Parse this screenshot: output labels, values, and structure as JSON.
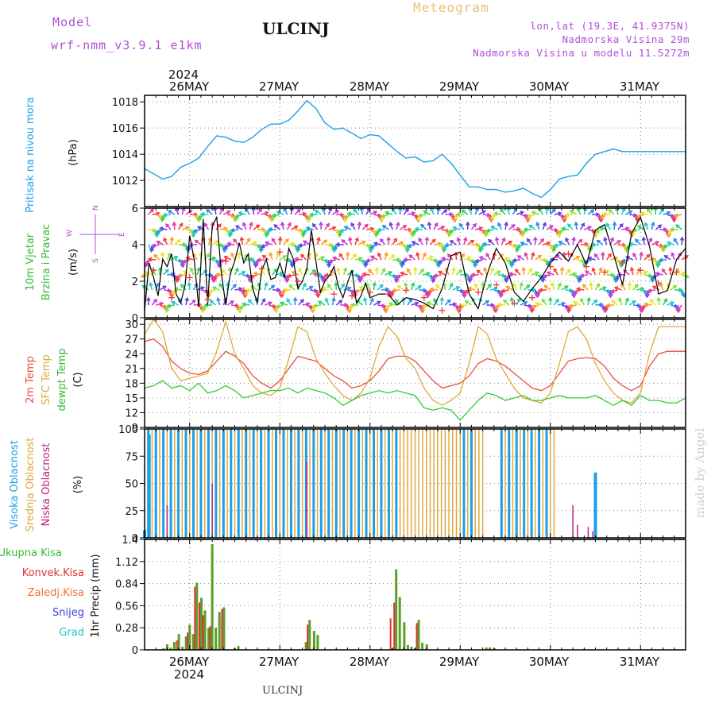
{
  "header": {
    "model_label": "Model",
    "model_name": "wrf-nmm_v3.9.1 e1km",
    "station": "ULCINJ",
    "product": "Meteogram",
    "lonlat": "lon,lat (19.3E, 41.9375N)",
    "elevation": "Nadmorska Visina 29m",
    "model_elevation": "Nadmorska Visina u modelu 11.5272m"
  },
  "footer": {
    "station": "ULCINJ",
    "credit": "made by Angel"
  },
  "time_axis": {
    "year": "2024",
    "days": [
      "26MAY",
      "27MAY",
      "28MAY",
      "29MAY",
      "30MAY",
      "31MAY"
    ]
  },
  "colors": {
    "pressure": "#1da1e6",
    "wind_speed": "#000000",
    "wind_gust": "#e83c3c",
    "t2m": "#e8503c",
    "sfc": "#e0a83c",
    "dewpoint": "#33cc33",
    "cloud_high": "#1a9fe8",
    "cloud_mid": "#e0a83c",
    "cloud_low": "#c02080",
    "precip_total": "#5a9e2a",
    "precip_conv": "#e03030"
  },
  "panels": {
    "pressure": {
      "label": "Pritisak na nivou mora",
      "unit": "(hPa)"
    },
    "wind": {
      "label1": "10m Vjetar",
      "label2": "Brzina i Pravac",
      "unit": "(m/s)",
      "compass_n": "N",
      "compass_w": "W",
      "compass_e": "E",
      "compass_s": "S"
    },
    "temp": {
      "label1": "2m Temp",
      "label2": "SFC Temp",
      "label3": "dewpt Temp",
      "unit": "(C)"
    },
    "cloud": {
      "label1": "Visoka Oblacnost",
      "label2": "Srednja Oblacnost",
      "label3": "Niska Oblacnost",
      "unit": "(%)"
    },
    "precip": {
      "label": "1hr Precip (mm)",
      "legend": [
        "Ukupna Kisa",
        "Konvek.Kisa",
        "Zaledj.Kisa",
        "Snijeg",
        "Grad"
      ]
    }
  },
  "chart_data": [
    {
      "type": "line",
      "title": "Pritisak na nivou mora",
      "ylabel": "(hPa)",
      "x_unit": "days since 26MAY 00h",
      "ylim": [
        1010,
        1018.5
      ],
      "yticks": [
        1012,
        1014,
        1016,
        1018
      ],
      "series": [
        {
          "name": "Pritisak na nivou mora",
          "x": [
            -0.5,
            -0.4,
            -0.3,
            -0.2,
            -0.1,
            0.0,
            0.1,
            0.2,
            0.3,
            0.4,
            0.5,
            0.6,
            0.7,
            0.8,
            0.9,
            1.0,
            1.1,
            1.2,
            1.3,
            1.4,
            1.5,
            1.6,
            1.7,
            1.8,
            1.9,
            2.0,
            2.1,
            2.2,
            2.3,
            2.4,
            2.5,
            2.6,
            2.7,
            2.8,
            2.9,
            3.0,
            3.1,
            3.2,
            3.3,
            3.4,
            3.5,
            3.6,
            3.7,
            3.8,
            3.9,
            4.0,
            4.1,
            4.2,
            4.3,
            4.4,
            4.5,
            4.6,
            4.7,
            4.8,
            4.9,
            5.0,
            5.1,
            5.2,
            5.3,
            5.4,
            5.5
          ],
          "y": [
            1012.9,
            1012.5,
            1012.1,
            1012.3,
            1013.0,
            1013.3,
            1013.7,
            1014.6,
            1015.4,
            1015.3,
            1015.0,
            1014.9,
            1015.3,
            1015.9,
            1016.3,
            1016.3,
            1016.6,
            1017.3,
            1018.1,
            1017.5,
            1016.4,
            1015.9,
            1016.0,
            1015.6,
            1015.2,
            1015.5,
            1015.4,
            1014.8,
            1014.2,
            1013.7,
            1013.8,
            1013.4,
            1013.5,
            1014.0,
            1013.3,
            1012.4,
            1011.5,
            1011.5,
            1011.3,
            1011.3,
            1011.1,
            1011.2,
            1011.4,
            1011.0,
            1010.7,
            1011.3,
            1012.1,
            1012.3,
            1012.4,
            1013.3,
            1014.0,
            1014.2,
            1014.4,
            1014.2,
            1014.2,
            1014.2,
            1014.2,
            1014.2,
            1014.2,
            1014.2,
            1014.2
          ]
        }
      ]
    },
    {
      "type": "line",
      "title": "10m Vjetar Brzina i Pravac",
      "ylabel": "(m/s)",
      "x_unit": "days since 26MAY 00h",
      "ylim": [
        0,
        6
      ],
      "yticks": [
        0,
        2,
        4,
        6
      ],
      "series": [
        {
          "name": "Brzina",
          "x": [
            -0.5,
            -0.45,
            -0.4,
            -0.35,
            -0.3,
            -0.25,
            -0.2,
            -0.15,
            -0.1,
            -0.05,
            0.0,
            0.05,
            0.1,
            0.15,
            0.2,
            0.25,
            0.3,
            0.35,
            0.4,
            0.45,
            0.5,
            0.55,
            0.6,
            0.65,
            0.7,
            0.75,
            0.8,
            0.85,
            0.9,
            0.95,
            1.0,
            1.05,
            1.1,
            1.15,
            1.2,
            1.25,
            1.3,
            1.35,
            1.4,
            1.45,
            1.5,
            1.55,
            1.6,
            1.65,
            1.7,
            1.75,
            1.8,
            1.85,
            1.9,
            1.95,
            2.0,
            2.1,
            2.2,
            2.3,
            2.4,
            2.5,
            2.6,
            2.7,
            2.8,
            2.9,
            3.0,
            3.1,
            3.2,
            3.3,
            3.4,
            3.5,
            3.6,
            3.7,
            3.8,
            3.9,
            4.0,
            4.1,
            4.2,
            4.3,
            4.4,
            4.5,
            4.6,
            4.7,
            4.8,
            4.9,
            5.0,
            5.1,
            5.2,
            5.3,
            5.4,
            5.5
          ],
          "y": [
            0.4,
            3.0,
            2.2,
            1.2,
            3.2,
            2.8,
            3.5,
            1.3,
            0.8,
            1.8,
            4.5,
            3.2,
            0.6,
            5.4,
            0.7,
            5.0,
            5.5,
            2.5,
            0.7,
            2.4,
            3.1,
            4.1,
            3.0,
            3.5,
            1.6,
            0.8,
            2.6,
            3.2,
            2.1,
            2.2,
            3.0,
            2.2,
            3.8,
            3.2,
            1.6,
            2.0,
            2.7,
            4.8,
            3.1,
            1.4,
            2.0,
            2.3,
            2.8,
            1.7,
            1.1,
            1.9,
            2.6,
            0.8,
            1.2,
            1.9,
            1.1,
            1.3,
            1.3,
            0.7,
            1.1,
            1.0,
            0.8,
            0.5,
            1.6,
            3.4,
            3.6,
            1.3,
            0.5,
            2.4,
            3.8,
            3.0,
            1.4,
            0.9,
            1.6,
            2.2,
            3.0,
            3.6,
            3.1,
            4.0,
            2.9,
            4.8,
            5.1,
            3.5,
            1.8,
            4.6,
            5.5,
            3.9,
            1.3,
            1.5,
            3.2,
            3.8
          ]
        },
        {
          "name": "Udari",
          "x": [
            -0.4,
            -0.2,
            0.0,
            0.2,
            0.4,
            0.6,
            0.8,
            1.0,
            1.2,
            1.4,
            1.6,
            1.8,
            2.0,
            2.2,
            2.4,
            2.6,
            2.8,
            3.0,
            3.2,
            3.4,
            3.6,
            3.8,
            4.0,
            4.2,
            4.4,
            4.6,
            4.8,
            5.0,
            5.2,
            5.4
          ],
          "y": [
            2.6,
            1.1,
            2.2,
            1.0,
            3.1,
            1.5,
            2.7,
            3.6,
            2.0,
            2.4,
            1.3,
            1.2,
            1.4,
            1.3,
            1.5,
            1.1,
            0.4,
            0.6,
            1.4,
            1.8,
            0.8,
            1.1,
            2.8,
            3.5,
            2.8,
            2.5,
            3.0,
            2.6,
            1.9,
            2.5
          ]
        }
      ]
    },
    {
      "type": "line",
      "title": "2m Temp, SFC Temp, dewpt Temp",
      "ylabel": "(C)",
      "x_unit": "days since 26MAY 00h",
      "ylim": [
        9,
        31
      ],
      "yticks": [
        9,
        12,
        15,
        18,
        21,
        24,
        27,
        30
      ],
      "series": [
        {
          "name": "2m Temp",
          "x": [
            -0.5,
            -0.4,
            -0.3,
            -0.2,
            -0.1,
            0.0,
            0.1,
            0.2,
            0.3,
            0.4,
            0.5,
            0.6,
            0.7,
            0.8,
            0.9,
            1.0,
            1.1,
            1.2,
            1.3,
            1.4,
            1.5,
            1.6,
            1.7,
            1.8,
            1.9,
            2.0,
            2.1,
            2.2,
            2.3,
            2.4,
            2.5,
            2.6,
            2.7,
            2.8,
            2.9,
            3.0,
            3.1,
            3.2,
            3.3,
            3.4,
            3.5,
            3.6,
            3.7,
            3.8,
            3.9,
            4.0,
            4.1,
            4.2,
            4.3,
            4.4,
            4.5,
            4.6,
            4.7,
            4.8,
            4.9,
            5.0,
            5.1,
            5.2,
            5.3,
            5.4,
            5.5
          ],
          "y": [
            26.5,
            27.0,
            25.5,
            22.5,
            21.0,
            20.0,
            19.8,
            20.5,
            22.5,
            24.5,
            23.5,
            22.0,
            19.5,
            18.0,
            17.0,
            18.5,
            21.0,
            23.5,
            23.0,
            22.5,
            21.0,
            19.5,
            18.5,
            17.0,
            17.5,
            18.5,
            20.5,
            23.0,
            23.5,
            23.5,
            22.5,
            20.5,
            18.5,
            17.0,
            17.5,
            18.0,
            19.5,
            22.0,
            23.0,
            22.5,
            21.5,
            20.0,
            18.5,
            17.0,
            16.5,
            17.5,
            20.0,
            22.5,
            23.0,
            23.2,
            23.0,
            21.5,
            19.0,
            17.5,
            16.5,
            17.5,
            21.5,
            24.0,
            24.5,
            24.5,
            24.5
          ]
        },
        {
          "name": "SFC Temp",
          "x": [
            -0.5,
            -0.4,
            -0.3,
            -0.2,
            -0.1,
            0.0,
            0.1,
            0.2,
            0.3,
            0.4,
            0.5,
            0.6,
            0.7,
            0.8,
            0.9,
            1.0,
            1.1,
            1.2,
            1.3,
            1.4,
            1.5,
            1.6,
            1.7,
            1.8,
            1.9,
            2.0,
            2.1,
            2.2,
            2.3,
            2.4,
            2.5,
            2.6,
            2.7,
            2.8,
            2.9,
            3.0,
            3.1,
            3.2,
            3.3,
            3.4,
            3.5,
            3.6,
            3.7,
            3.8,
            3.9,
            4.0,
            4.1,
            4.2,
            4.3,
            4.4,
            4.5,
            4.6,
            4.7,
            4.8,
            4.9,
            5.0,
            5.1,
            5.2,
            5.3,
            5.4,
            5.5
          ],
          "y": [
            28.0,
            31.0,
            28.5,
            21.0,
            18.5,
            19.0,
            19.5,
            20.0,
            24.5,
            30.5,
            24.0,
            21.0,
            17.5,
            16.0,
            15.5,
            17.0,
            23.0,
            29.5,
            28.5,
            23.0,
            20.0,
            17.5,
            15.5,
            14.5,
            16.0,
            19.0,
            25.5,
            29.5,
            27.5,
            23.0,
            21.0,
            17.0,
            14.5,
            13.5,
            14.5,
            16.0,
            22.0,
            29.5,
            28.0,
            23.0,
            20.0,
            17.0,
            15.0,
            14.5,
            14.0,
            16.0,
            22.0,
            28.5,
            29.5,
            27.0,
            22.0,
            18.5,
            16.0,
            14.5,
            14.0,
            16.0,
            24.0,
            29.5,
            29.5,
            29.5,
            29.5
          ]
        },
        {
          "name": "dewpt Temp",
          "x": [
            -0.5,
            -0.4,
            -0.3,
            -0.2,
            -0.1,
            0.0,
            0.1,
            0.2,
            0.3,
            0.4,
            0.5,
            0.6,
            0.7,
            0.8,
            0.9,
            1.0,
            1.1,
            1.2,
            1.3,
            1.4,
            1.5,
            1.6,
            1.7,
            1.8,
            1.9,
            2.0,
            2.1,
            2.2,
            2.3,
            2.4,
            2.5,
            2.6,
            2.7,
            2.8,
            2.9,
            3.0,
            3.1,
            3.2,
            3.3,
            3.4,
            3.5,
            3.6,
            3.7,
            3.8,
            3.9,
            4.0,
            4.1,
            4.2,
            4.3,
            4.4,
            4.5,
            4.6,
            4.7,
            4.8,
            4.9,
            5.0,
            5.1,
            5.2,
            5.3,
            5.4,
            5.5
          ],
          "y": [
            17.0,
            17.5,
            18.5,
            17.0,
            17.5,
            16.5,
            18.0,
            16.0,
            16.5,
            17.5,
            16.5,
            15.0,
            15.5,
            16.0,
            16.5,
            16.5,
            17.0,
            16.0,
            17.0,
            16.5,
            16.0,
            15.0,
            13.5,
            14.5,
            15.5,
            16.0,
            16.5,
            16.0,
            16.5,
            16.0,
            15.5,
            13.0,
            12.5,
            13.0,
            12.5,
            10.5,
            12.5,
            14.5,
            16.0,
            15.5,
            14.5,
            15.0,
            15.5,
            14.5,
            14.5,
            15.0,
            15.5,
            15.0,
            15.0,
            15.0,
            15.5,
            14.5,
            13.5,
            14.5,
            13.5,
            15.5,
            14.5,
            14.5,
            14.0,
            14.0,
            15.0
          ]
        }
      ]
    },
    {
      "type": "bar",
      "title": "Visoka Oblacnost, Srednja Oblacnost, Niska Oblacnost",
      "ylabel": "(%)",
      "x_unit": "days since 26MAY 00h",
      "ylim": [
        0,
        100
      ],
      "yticks": [
        0,
        25,
        50,
        75,
        100
      ],
      "series": [
        {
          "name": "Visoka Oblacnost",
          "x_range": [
            -0.45,
            4.0
          ],
          "value": 100,
          "extra": [
            {
              "x": 4.5,
              "y": 60
            },
            {
              "x": -0.45,
              "y": 95
            },
            {
              "x": -0.5,
              "y": 7
            }
          ]
        },
        {
          "name": "Srednja Oblacnost",
          "x_range": [
            -0.4,
            4.05
          ],
          "value": 100,
          "gaps": [
            [
              3.25,
              3.5
            ]
          ]
        },
        {
          "name": "Niska Oblacnost",
          "points": [
            {
              "x": -0.25,
              "y": 30
            },
            {
              "x": 0.25,
              "y": 50
            },
            {
              "x": 1.3,
              "y": 70
            },
            {
              "x": 4.25,
              "y": 30
            },
            {
              "x": 4.3,
              "y": 12
            },
            {
              "x": 4.42,
              "y": 10
            },
            {
              "x": 4.47,
              "y": 6
            }
          ]
        }
      ]
    },
    {
      "type": "bar",
      "title": "1hr Precip (mm)",
      "ylabel": "1hr Precip (mm)",
      "x_unit": "days since 26MAY 00h",
      "ylim": [
        0,
        1.4
      ],
      "yticks": [
        0,
        0.28,
        0.56,
        0.84,
        1.12,
        1.4
      ],
      "series": [
        {
          "name": "Ukupna Kisa",
          "x": [
            -0.29,
            -0.25,
            -0.21,
            -0.17,
            -0.12,
            -0.08,
            -0.04,
            0.0,
            0.04,
            0.08,
            0.13,
            0.17,
            0.21,
            0.25,
            0.29,
            0.33,
            0.38,
            0.5,
            0.54,
            1.29,
            1.33,
            1.38,
            1.42,
            2.25,
            2.29,
            2.33,
            2.38,
            2.42,
            2.46,
            2.5,
            2.54,
            2.58,
            2.63,
            3.29,
            3.33,
            3.38
          ],
          "y": [
            0.02,
            0.07,
            0.03,
            0.1,
            0.2,
            0.04,
            0.17,
            0.32,
            0.2,
            0.85,
            0.66,
            0.5,
            0.28,
            1.34,
            0.28,
            0.48,
            0.54,
            0.02,
            0.05,
            0.1,
            0.38,
            0.24,
            0.19,
            0.02,
            1.02,
            0.67,
            0.35,
            0.06,
            0.04,
            0.02,
            0.38,
            0.09,
            0.07,
            0.03,
            0.03,
            0.02
          ]
        },
        {
          "name": "Konvek.Kisa",
          "x": [
            -0.12,
            0.0,
            0.08,
            0.13,
            0.17,
            0.25,
            0.38,
            1.33,
            2.25,
            2.29,
            2.54
          ],
          "y": [
            0.12,
            0.22,
            0.8,
            0.6,
            0.44,
            0.3,
            0.52,
            0.32,
            0.4,
            0.6,
            0.34
          ]
        }
      ]
    }
  ]
}
